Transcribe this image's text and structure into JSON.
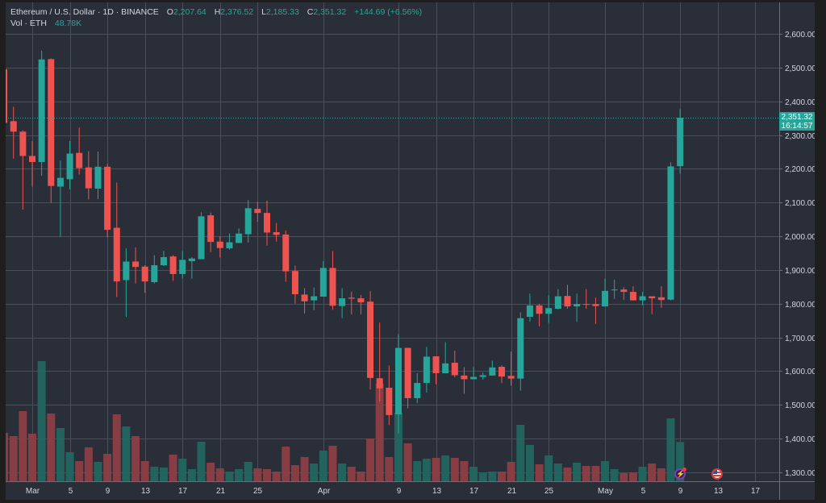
{
  "header": {
    "symbol": "Ethereum / U.S. Dollar · 1D · BINANCE",
    "o_label": "O",
    "o_value": "2,207.64",
    "h_label": "H",
    "h_value": "2,376.52",
    "l_label": "L",
    "l_value": "2,185.33",
    "c_label": "C",
    "c_value": "2,351.32",
    "change": "+144.69",
    "change_pct": "(+6.56%)",
    "vol_label": "Vol · ETH",
    "vol_value": "48.78K"
  },
  "price_tag": {
    "price": "2,351.32",
    "countdown": "16:14:57"
  },
  "colors": {
    "up": "#26a69a",
    "down": "#ef5350",
    "up_vol": "#22675f",
    "down_vol": "#8b3f45",
    "background": "#2a2e39",
    "grid": "#4a4e59"
  },
  "events": [
    {
      "icon": "lightning-event-icon"
    },
    {
      "icon": "us-flag-event-icon"
    }
  ],
  "chart_data": {
    "type": "candlestick",
    "title": "Ethereum / U.S. Dollar · 1D · BINANCE",
    "x_unit": "day offset from Mar 1",
    "ylim": [
      1300,
      2600
    ],
    "y_ticks": [
      "2,600.00",
      "2,500.00",
      "2,400.00",
      "2,300.00",
      "2,200.00",
      "2,100.00",
      "2,000.00",
      "1,900.00",
      "1,800.00",
      "1,700.00",
      "1,600.00",
      "1,500.00",
      "1,400.00",
      "1,300.00"
    ],
    "y_tick_values": [
      2600,
      2500,
      2400,
      2300,
      2200,
      2100,
      2000,
      1900,
      1800,
      1700,
      1600,
      1500,
      1400,
      1300
    ],
    "x_ticks": [
      {
        "label": "Mar",
        "d": 0
      },
      {
        "label": "5",
        "d": 4
      },
      {
        "label": "9",
        "d": 8
      },
      {
        "label": "13",
        "d": 12
      },
      {
        "label": "17",
        "d": 16
      },
      {
        "label": "21",
        "d": 20
      },
      {
        "label": "25",
        "d": 24
      },
      {
        "label": "Apr",
        "d": 31
      },
      {
        "label": "9",
        "d": 39
      },
      {
        "label": "13",
        "d": 43
      },
      {
        "label": "17",
        "d": 47
      },
      {
        "label": "21",
        "d": 51
      },
      {
        "label": "25",
        "d": 55
      },
      {
        "label": "May",
        "d": 61
      },
      {
        "label": "5",
        "d": 65
      },
      {
        "label": "9",
        "d": 69
      },
      {
        "label": "13",
        "d": 73
      },
      {
        "label": "17",
        "d": 77
      }
    ],
    "grid": true,
    "volume_unit": "K ETH",
    "columns": [
      "d",
      "open",
      "high",
      "low",
      "close",
      "volume"
    ],
    "candles": [
      [
        -3,
        2495,
        2500,
        2330,
        2336,
        60
      ],
      [
        -2,
        2341,
        2384,
        2230,
        2310,
        56
      ],
      [
        -1,
        2310,
        2314,
        2079,
        2238,
        87
      ],
      [
        0,
        2238,
        2282,
        2147,
        2220,
        59
      ],
      [
        1,
        2220,
        2550,
        2179,
        2524,
        149
      ],
      [
        2,
        2525,
        2527,
        2098,
        2149,
        84
      ],
      [
        3,
        2147,
        2224,
        1998,
        2173,
        66
      ],
      [
        4,
        2169,
        2282,
        2139,
        2245,
        36
      ],
      [
        5,
        2247,
        2322,
        2183,
        2202,
        25
      ],
      [
        6,
        2204,
        2252,
        2109,
        2142,
        42
      ],
      [
        7,
        2141,
        2251,
        2110,
        2206,
        24
      ],
      [
        8,
        2206,
        2214,
        1997,
        2019,
        34
      ],
      [
        9,
        2025,
        2159,
        1820,
        1866,
        83
      ],
      [
        10,
        1870,
        1964,
        1761,
        1925,
        68
      ],
      [
        11,
        1925,
        1967,
        1860,
        1909,
        56
      ],
      [
        12,
        1910,
        1914,
        1832,
        1866,
        25
      ],
      [
        13,
        1864,
        1944,
        1860,
        1914,
        18
      ],
      [
        14,
        1914,
        1957,
        1912,
        1938,
        17
      ],
      [
        15,
        1940,
        1944,
        1868,
        1888,
        33
      ],
      [
        16,
        1888,
        1956,
        1874,
        1930,
        28
      ],
      [
        17,
        1926,
        1938,
        1874,
        1934,
        15
      ],
      [
        18,
        1932,
        2071,
        1932,
        2059,
        49
      ],
      [
        19,
        2062,
        2070,
        1953,
        1983,
        23
      ],
      [
        20,
        1984,
        2000,
        1937,
        1965,
        16
      ],
      [
        21,
        1964,
        2008,
        1960,
        1982,
        12
      ],
      [
        22,
        1980,
        2023,
        1980,
        2008,
        15
      ],
      [
        23,
        2006,
        2107,
        1981,
        2083,
        24
      ],
      [
        24,
        2081,
        2102,
        2043,
        2069,
        16
      ],
      [
        25,
        2069,
        2106,
        1972,
        2011,
        15
      ],
      [
        26,
        2012,
        2039,
        1984,
        2004,
        12
      ],
      [
        27,
        2005,
        2017,
        1865,
        1896,
        43
      ],
      [
        28,
        1897,
        1913,
        1800,
        1828,
        20
      ],
      [
        29,
        1827,
        1846,
        1771,
        1807,
        30
      ],
      [
        30,
        1810,
        1848,
        1781,
        1822,
        22
      ],
      [
        31,
        1821,
        1926,
        1821,
        1906,
        38
      ],
      [
        32,
        1906,
        1956,
        1782,
        1794,
        44
      ],
      [
        33,
        1793,
        1846,
        1757,
        1816,
        22
      ],
      [
        34,
        1818,
        1836,
        1768,
        1815,
        18
      ],
      [
        35,
        1816,
        1826,
        1768,
        1804,
        12
      ],
      [
        36,
        1806,
        1837,
        1546,
        1580,
        53
      ],
      [
        37,
        1579,
        1744,
        1510,
        1549,
        121
      ],
      [
        38,
        1551,
        1617,
        1440,
        1470,
        30
      ],
      [
        39,
        1472,
        1710,
        1415,
        1669,
        85
      ],
      [
        40,
        1669,
        1669,
        1490,
        1520,
        47
      ],
      [
        41,
        1520,
        1594,
        1505,
        1565,
        25
      ],
      [
        42,
        1565,
        1672,
        1537,
        1643,
        28
      ],
      [
        43,
        1644,
        1644,
        1561,
        1594,
        29
      ],
      [
        44,
        1594,
        1686,
        1594,
        1623,
        32
      ],
      [
        45,
        1625,
        1661,
        1582,
        1588,
        29
      ],
      [
        46,
        1587,
        1612,
        1533,
        1576,
        25
      ],
      [
        47,
        1576,
        1612,
        1576,
        1583,
        18
      ],
      [
        48,
        1583,
        1596,
        1575,
        1588,
        11
      ],
      [
        49,
        1587,
        1631,
        1587,
        1611,
        12
      ],
      [
        50,
        1613,
        1617,
        1565,
        1584,
        12
      ],
      [
        51,
        1586,
        1658,
        1557,
        1578,
        24
      ],
      [
        52,
        1578,
        1774,
        1542,
        1757,
        70
      ],
      [
        53,
        1761,
        1830,
        1747,
        1795,
        45
      ],
      [
        54,
        1795,
        1800,
        1733,
        1770,
        21
      ],
      [
        55,
        1770,
        1825,
        1743,
        1787,
        32
      ],
      [
        56,
        1785,
        1843,
        1783,
        1822,
        22
      ],
      [
        57,
        1823,
        1856,
        1785,
        1792,
        17
      ],
      [
        58,
        1792,
        1830,
        1746,
        1799,
        23
      ],
      [
        59,
        1799,
        1843,
        1785,
        1798,
        19
      ],
      [
        60,
        1799,
        1818,
        1740,
        1793,
        19
      ],
      [
        61,
        1792,
        1874,
        1792,
        1838,
        25
      ],
      [
        62,
        1841,
        1871,
        1814,
        1842,
        15
      ],
      [
        63,
        1842,
        1849,
        1811,
        1835,
        10
      ],
      [
        64,
        1835,
        1852,
        1809,
        1810,
        11
      ],
      [
        65,
        1810,
        1835,
        1795,
        1822,
        18
      ],
      [
        66,
        1822,
        1822,
        1769,
        1816,
        22
      ],
      [
        67,
        1819,
        1852,
        1788,
        1811,
        16
      ],
      [
        68,
        1812,
        2219,
        1810,
        2207,
        78
      ],
      [
        69,
        2207.64,
        2376.52,
        2185.33,
        2351.32,
        48.78
      ]
    ],
    "last_price": 2351.32
  }
}
